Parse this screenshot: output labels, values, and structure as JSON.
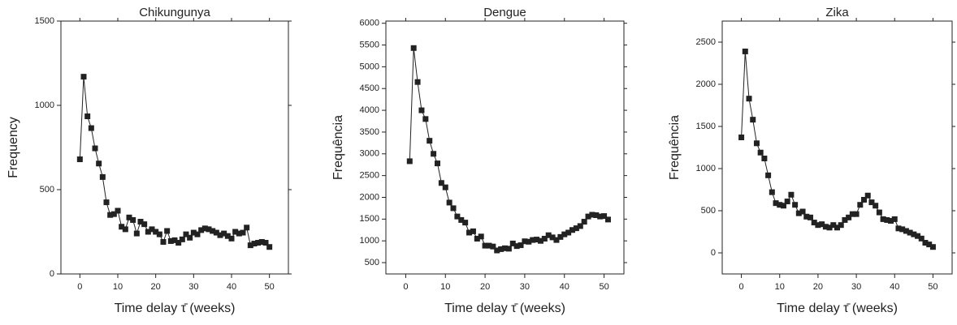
{
  "chart_data": [
    {
      "type": "line",
      "title": "Chikungunya",
      "xlabel": "Time delay τ̄ (weeks)",
      "ylabel": "Frequency",
      "color": "#222222",
      "x": [
        0,
        1,
        2,
        3,
        4,
        5,
        6,
        7,
        8,
        9,
        10,
        11,
        12,
        13,
        14,
        15,
        16,
        17,
        18,
        19,
        20,
        21,
        22,
        23,
        24,
        25,
        26,
        27,
        28,
        29,
        30,
        31,
        32,
        33,
        34,
        35,
        36,
        37,
        38,
        39,
        40,
        41,
        42,
        43,
        44,
        45,
        46,
        47,
        48,
        49,
        50
      ],
      "values": [
        680,
        1170,
        935,
        865,
        745,
        655,
        575,
        425,
        350,
        355,
        375,
        280,
        265,
        335,
        320,
        240,
        310,
        295,
        250,
        265,
        250,
        235,
        190,
        255,
        195,
        200,
        185,
        205,
        235,
        215,
        245,
        235,
        260,
        270,
        265,
        255,
        245,
        230,
        240,
        225,
        210,
        250,
        240,
        245,
        275,
        170,
        180,
        185,
        190,
        185,
        160
      ],
      "xlim": [
        -5,
        55
      ],
      "xticks": [
        0,
        10,
        20,
        30,
        40,
        50
      ],
      "ylim": [
        0,
        1500
      ],
      "yticks": [
        0,
        500,
        1000,
        1500
      ]
    },
    {
      "type": "line",
      "title": "Dengue",
      "xlabel": "Time delay τ̄ (weeks)",
      "ylabel": "Frequência",
      "color": "#222222",
      "x": [
        1,
        2,
        3,
        4,
        5,
        6,
        7,
        8,
        9,
        10,
        11,
        12,
        13,
        14,
        15,
        16,
        17,
        18,
        19,
        20,
        21,
        22,
        23,
        24,
        25,
        26,
        27,
        28,
        29,
        30,
        31,
        32,
        33,
        34,
        35,
        36,
        37,
        38,
        39,
        40,
        41,
        42,
        43,
        44,
        45,
        46,
        47,
        48,
        49,
        50,
        51
      ],
      "values": [
        2830,
        5430,
        4650,
        4000,
        3800,
        3300,
        3000,
        2780,
        2330,
        2230,
        1880,
        1750,
        1560,
        1480,
        1420,
        1190,
        1220,
        1050,
        1100,
        890,
        890,
        870,
        780,
        810,
        830,
        820,
        940,
        880,
        900,
        990,
        980,
        1020,
        1030,
        1000,
        1050,
        1130,
        1080,
        1020,
        1090,
        1150,
        1190,
        1250,
        1290,
        1340,
        1440,
        1560,
        1600,
        1590,
        1560,
        1570,
        1490
      ],
      "xlim": [
        -5,
        55
      ],
      "xticks": [
        0,
        10,
        20,
        30,
        40,
        50
      ],
      "ylim": [
        240,
        6050
      ],
      "yticks": [
        500,
        1000,
        1500,
        2000,
        2500,
        3000,
        3500,
        4000,
        4500,
        5000,
        5500,
        6000
      ]
    },
    {
      "type": "line",
      "title": "Zika",
      "xlabel": "Time delay τ̄ (weeks)",
      "ylabel": "Frequência",
      "color": "#222222",
      "x": [
        0,
        1,
        2,
        3,
        4,
        5,
        6,
        7,
        8,
        9,
        10,
        11,
        12,
        13,
        14,
        15,
        16,
        17,
        18,
        19,
        20,
        21,
        22,
        23,
        24,
        25,
        26,
        27,
        28,
        29,
        30,
        31,
        32,
        33,
        34,
        35,
        36,
        37,
        38,
        39,
        40,
        41,
        42,
        43,
        44,
        45,
        46,
        47,
        48,
        49,
        50
      ],
      "values": [
        1370,
        2390,
        1830,
        1580,
        1300,
        1190,
        1120,
        920,
        720,
        590,
        570,
        560,
        610,
        690,
        570,
        470,
        490,
        430,
        420,
        360,
        330,
        340,
        310,
        300,
        330,
        300,
        330,
        390,
        420,
        460,
        460,
        570,
        630,
        680,
        600,
        560,
        480,
        400,
        390,
        380,
        400,
        290,
        280,
        260,
        240,
        220,
        200,
        170,
        120,
        100,
        70
      ],
      "xlim": [
        -5,
        55
      ],
      "xticks": [
        0,
        10,
        20,
        30,
        40,
        50
      ],
      "ylim": [
        -250,
        2750
      ],
      "yticks": [
        0,
        500,
        1000,
        1500,
        2000,
        2500
      ]
    }
  ]
}
